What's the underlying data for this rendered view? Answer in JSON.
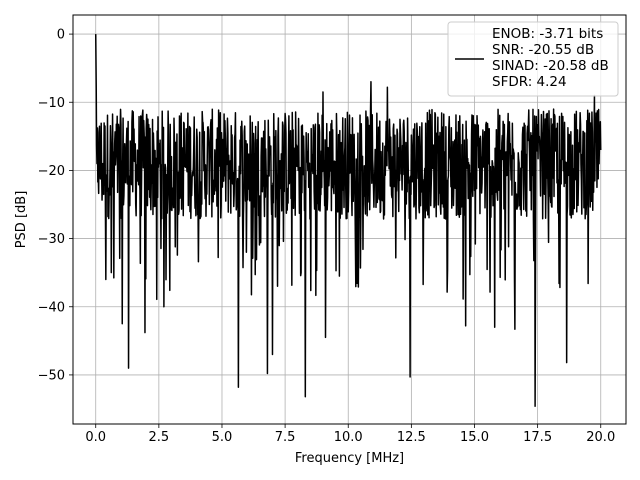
{
  "chart_data": {
    "type": "line",
    "title": "",
    "xlabel": "Frequency [MHz]",
    "ylabel": "PSD [dB]",
    "xlim": [
      -0.9,
      21.0
    ],
    "ylim": [
      -57.2,
      2.8
    ],
    "x_ticks": [
      0.0,
      2.5,
      5.0,
      7.5,
      10.0,
      12.5,
      15.0,
      17.5,
      20.0
    ],
    "x_tick_labels": [
      "0.0",
      "2.5",
      "5.0",
      "7.5",
      "10.0",
      "12.5",
      "15.0",
      "17.5",
      "20.0"
    ],
    "y_ticks": [
      0,
      -10,
      -20,
      -30,
      -40,
      -50
    ],
    "y_tick_labels": [
      "0",
      "−10",
      "−20",
      "−30",
      "−40",
      "−50"
    ],
    "grid": true,
    "legend_position": "top-right",
    "series": [
      {
        "color": "#000000",
        "x_range": [
          0.0,
          20.0
        ],
        "points": 1200,
        "noise_floor_db": [
          -30,
          -11
        ],
        "notable_points": [
          {
            "x": 0.0,
            "y": 0.0
          },
          {
            "x": 0.02,
            "y": -8.0
          },
          {
            "x": 0.05,
            "y": -19.0
          },
          {
            "x": 0.1,
            "y": -21.0
          },
          {
            "x": 0.4,
            "y": -36.0
          },
          {
            "x": 1.05,
            "y": -42.5
          },
          {
            "x": 1.3,
            "y": -49.0
          },
          {
            "x": 1.95,
            "y": -43.8
          },
          {
            "x": 2.7,
            "y": -40.0
          },
          {
            "x": 5.65,
            "y": -51.8
          },
          {
            "x": 6.8,
            "y": -49.8
          },
          {
            "x": 7.0,
            "y": -47.0
          },
          {
            "x": 8.3,
            "y": -53.2
          },
          {
            "x": 9.1,
            "y": -44.5
          },
          {
            "x": 12.45,
            "y": -50.3
          },
          {
            "x": 14.65,
            "y": -42.8
          },
          {
            "x": 15.8,
            "y": -43.0
          },
          {
            "x": 16.6,
            "y": -43.3
          },
          {
            "x": 17.4,
            "y": -54.6
          },
          {
            "x": 18.65,
            "y": -48.2
          },
          {
            "x": 9.0,
            "y": -8.5
          },
          {
            "x": 10.9,
            "y": -7.0
          },
          {
            "x": 11.55,
            "y": -7.8
          },
          {
            "x": 19.75,
            "y": -9.0
          },
          {
            "x": 20.0,
            "y": -17.0
          }
        ]
      }
    ],
    "legend": {
      "entries": [
        "ENOB: -3.71 bits",
        "SNR: -20.55 dB",
        "SINAD: -20.58 dB",
        "SFDR: 4.24"
      ]
    }
  }
}
